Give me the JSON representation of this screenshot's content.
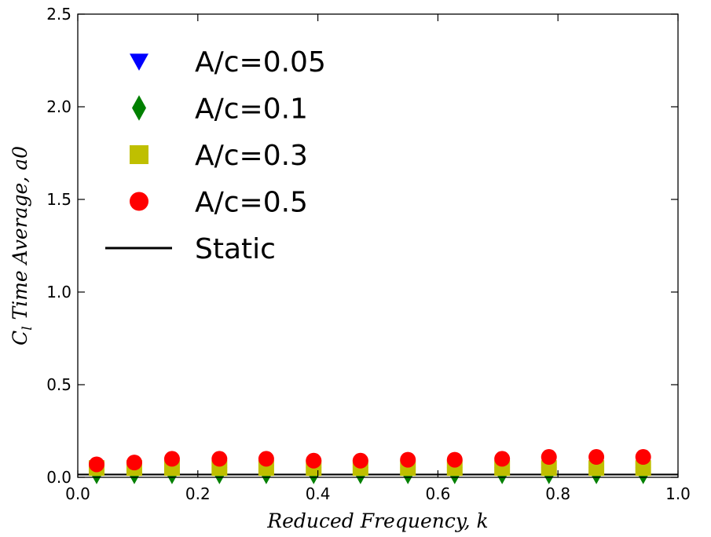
{
  "chart_data": {
    "type": "scatter",
    "title": "",
    "xlabel": "Reduced Frequency, k",
    "ylabel": "C_l Time Average, a0",
    "ylabel_main": "C",
    "ylabel_sub": "l",
    "ylabel_rest": " Time Average, a0",
    "xlim": [
      0.0,
      1.0
    ],
    "ylim": [
      0.0,
      2.5
    ],
    "xticks": [
      "0.0",
      "0.2",
      "0.4",
      "0.6",
      "0.8",
      "1.0"
    ],
    "yticks": [
      "0.0",
      "0.5",
      "1.0",
      "1.5",
      "2.0",
      "2.5"
    ],
    "grid": false,
    "legend_position": "upper-left",
    "x": [
      0.0314,
      0.0942,
      0.157,
      0.236,
      0.314,
      0.393,
      0.471,
      0.55,
      0.628,
      0.707,
      0.785,
      0.864,
      0.942
    ],
    "series": [
      {
        "name": "A/c=0.05",
        "marker": "triangle-down",
        "color": "#0000ff",
        "values": [
          0.02,
          0.02,
          0.02,
          0.02,
          0.03,
          0.02,
          0.02,
          0.02,
          0.02,
          0.02,
          0.02,
          0.02,
          0.02
        ]
      },
      {
        "name": "A/c=0.1",
        "marker": "diamond",
        "color": "#008000",
        "values": [
          0.02,
          0.02,
          0.02,
          0.02,
          0.02,
          0.02,
          0.02,
          0.02,
          0.02,
          0.02,
          0.02,
          0.02,
          0.02
        ]
      },
      {
        "name": "A/c=0.3",
        "marker": "square",
        "color": "#bfbf00",
        "values": [
          0.05,
          0.05,
          0.05,
          0.05,
          0.05,
          0.05,
          0.05,
          0.05,
          0.05,
          0.05,
          0.05,
          0.05,
          0.05
        ]
      },
      {
        "name": "A/c=0.5",
        "marker": "circle",
        "color": "#ff0000",
        "values": [
          0.07,
          0.08,
          0.1,
          0.1,
          0.1,
          0.09,
          0.09,
          0.095,
          0.095,
          0.1,
          0.11,
          0.11,
          0.11
        ]
      }
    ],
    "static": {
      "name": "Static",
      "color": "#000000",
      "value": 0.015
    }
  }
}
